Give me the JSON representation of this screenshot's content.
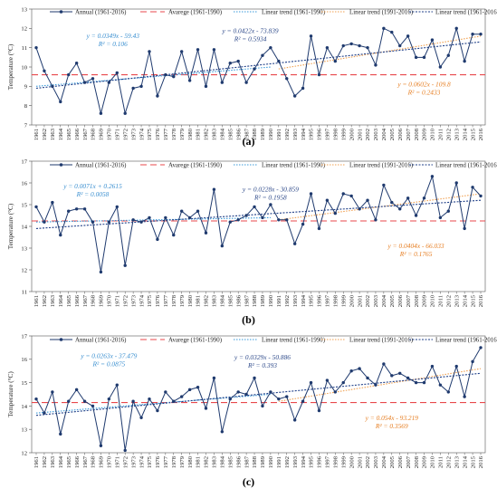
{
  "legend": {
    "annual": "Annual (1961-2016)",
    "average": "Avarege (1961-1990)",
    "trend1": "Linear trend (1961-1990)",
    "trend2": "Linear trend (1991-2016)",
    "trend3": "Linear trend (1961-2016)"
  },
  "colors": {
    "annual": "#1f3a6e",
    "average": "#e8494d",
    "trend1": "#3a9ad9",
    "trend2": "#f0a050",
    "trend3": "#1f3f88",
    "eq1": "#3a8fd0",
    "eq3": "#2e4a8a",
    "eq2": "#e67e22"
  },
  "chart_data": [
    {
      "type": "line",
      "caption": "(a)",
      "ylabel": "Temperature (°C)",
      "ylim": [
        7,
        13
      ],
      "yticks": [
        7,
        8,
        9,
        10,
        11,
        12,
        13
      ],
      "x": [
        1961,
        1962,
        1963,
        1964,
        1965,
        1966,
        1967,
        1968,
        1969,
        1970,
        1971,
        1972,
        1973,
        1974,
        1975,
        1976,
        1977,
        1978,
        1979,
        1980,
        1981,
        1982,
        1983,
        1984,
        1985,
        1986,
        1987,
        1988,
        1989,
        1990,
        1991,
        1992,
        1993,
        1994,
        1995,
        1996,
        1997,
        1998,
        1999,
        2000,
        2001,
        2002,
        2003,
        2004,
        2005,
        2006,
        2007,
        2008,
        2009,
        2010,
        2011,
        2012,
        2013,
        2014,
        2015,
        2016
      ],
      "series": [
        {
          "name": "Annual (1961-2016)",
          "values": [
            11.0,
            9.8,
            9.0,
            8.2,
            9.6,
            10.2,
            9.2,
            9.4,
            7.6,
            9.2,
            9.7,
            7.6,
            8.9,
            9.0,
            10.8,
            8.5,
            9.6,
            9.5,
            10.8,
            9.3,
            10.9,
            9.0,
            10.9,
            9.2,
            10.2,
            10.3,
            9.2,
            9.9,
            10.6,
            11.0,
            10.3,
            9.4,
            8.5,
            8.9,
            11.6,
            9.6,
            11.0,
            10.3,
            11.1,
            11.2,
            11.1,
            11.0,
            10.1,
            12.0,
            11.8,
            11.1,
            11.6,
            10.5,
            10.5,
            11.4,
            10.0,
            10.6,
            12.0,
            10.3,
            11.7,
            11.7
          ]
        },
        {
          "name": "Avarege (1961-1990)",
          "kind": "average",
          "value": 9.6
        },
        {
          "name": "Linear trend (1961-1990)",
          "kind": "trend",
          "x": [
            1961,
            1990
          ],
          "values": [
            9.0,
            10.0
          ]
        },
        {
          "name": "Linear trend (1991-2016)",
          "kind": "trend",
          "x": [
            1991,
            2016
          ],
          "values": [
            9.9,
            11.6
          ]
        },
        {
          "name": "Linear trend (1961-2016)",
          "kind": "trend",
          "x": [
            1961,
            2016
          ],
          "values": [
            8.9,
            11.3
          ]
        }
      ],
      "annotations": [
        {
          "eq": "y = 0.0349x - 59.43",
          "r2": "R² = 0.106",
          "color": "eq1",
          "at": [
            1970.5,
            11.5
          ]
        },
        {
          "eq": "y = 0.0422x - 73.839",
          "r2": "R² = 0.5934",
          "color": "eq3",
          "at": [
            1987.5,
            11.75
          ]
        },
        {
          "eq": "y = 0.0602x - 109.8",
          "r2": "R² = 0.2433",
          "color": "eq2",
          "at": [
            2009,
            9.0
          ]
        }
      ]
    },
    {
      "type": "line",
      "caption": "(b)",
      "ylabel": "Temperature (°C)",
      "ylim": [
        11,
        17
      ],
      "yticks": [
        11,
        12,
        13,
        14,
        15,
        16,
        17
      ],
      "x": [
        1961,
        1962,
        1963,
        1964,
        1965,
        1966,
        1967,
        1968,
        1969,
        1970,
        1971,
        1972,
        1973,
        1974,
        1975,
        1976,
        1977,
        1978,
        1979,
        1980,
        1981,
        1982,
        1983,
        1984,
        1985,
        1986,
        1987,
        1988,
        1989,
        1990,
        1991,
        1992,
        1993,
        1994,
        1995,
        1996,
        1997,
        1998,
        1999,
        2000,
        2001,
        2002,
        2003,
        2004,
        2005,
        2006,
        2007,
        2008,
        2009,
        2010,
        2011,
        2012,
        2013,
        2014,
        2015,
        2016
      ],
      "series": [
        {
          "name": "Annual (1961-2016)",
          "values": [
            14.9,
            14.2,
            15.1,
            13.6,
            14.7,
            14.8,
            14.8,
            14.2,
            11.9,
            14.2,
            14.9,
            12.2,
            14.3,
            14.2,
            14.4,
            13.4,
            14.4,
            13.6,
            14.7,
            14.4,
            14.7,
            13.7,
            15.7,
            13.1,
            14.2,
            14.3,
            14.5,
            14.9,
            14.4,
            15.0,
            14.3,
            14.3,
            13.2,
            14.1,
            15.5,
            13.9,
            15.2,
            14.6,
            15.5,
            15.4,
            14.8,
            15.2,
            14.3,
            15.9,
            15.1,
            14.8,
            15.3,
            14.5,
            15.3,
            16.3,
            14.4,
            14.7,
            16.0,
            13.9,
            15.8,
            15.4
          ]
        },
        {
          "name": "Avarege (1961-1990)",
          "kind": "average",
          "value": 14.25
        },
        {
          "name": "Linear trend (1961-1990)",
          "kind": "trend",
          "x": [
            1961,
            1990
          ],
          "values": [
            14.2,
            14.4
          ]
        },
        {
          "name": "Linear trend (1991-2016)",
          "kind": "trend",
          "x": [
            1991,
            2016
          ],
          "values": [
            14.3,
            15.5
          ]
        },
        {
          "name": "Linear trend (1961-2016)",
          "kind": "trend",
          "x": [
            1961,
            2016
          ],
          "values": [
            13.9,
            15.2
          ]
        }
      ],
      "annotations": [
        {
          "eq": "y = 0.0071x + 0.2615",
          "r2": "R² = 0.0058",
          "color": "eq1",
          "at": [
            1968,
            15.75
          ]
        },
        {
          "eq": "y = 0.0228x - 30.859",
          "r2": "R² = 0.1958",
          "color": "eq3",
          "at": [
            1990,
            15.6
          ]
        },
        {
          "eq": "y = 0.0404x - 66.033",
          "r2": "R² = 0.1765",
          "color": "eq2",
          "at": [
            2008,
            13.0
          ]
        }
      ]
    },
    {
      "type": "line",
      "caption": "(c)",
      "ylabel": "Temperature (°C)",
      "ylim": [
        12,
        17
      ],
      "yticks": [
        12,
        13,
        14,
        15,
        16,
        17
      ],
      "x": [
        1961,
        1962,
        1963,
        1964,
        1965,
        1966,
        1967,
        1968,
        1969,
        1970,
        1971,
        1972,
        1973,
        1974,
        1975,
        1976,
        1977,
        1978,
        1979,
        1980,
        1981,
        1982,
        1983,
        1984,
        1985,
        1986,
        1987,
        1988,
        1989,
        1990,
        1991,
        1992,
        1993,
        1994,
        1995,
        1996,
        1997,
        1998,
        1999,
        2000,
        2001,
        2002,
        2003,
        2004,
        2005,
        2006,
        2007,
        2008,
        2009,
        2010,
        2011,
        2012,
        2013,
        2014,
        2015,
        2016
      ],
      "series": [
        {
          "name": "Annual (1961-2016)",
          "values": [
            14.3,
            13.7,
            14.6,
            12.8,
            14.2,
            14.7,
            14.2,
            14.0,
            12.3,
            14.3,
            14.9,
            12.1,
            14.2,
            13.5,
            14.3,
            13.8,
            14.6,
            14.2,
            14.4,
            14.7,
            14.8,
            13.9,
            15.2,
            12.9,
            14.3,
            14.6,
            14.5,
            15.2,
            14.0,
            14.6,
            14.3,
            14.4,
            13.4,
            14.2,
            15.0,
            13.8,
            15.1,
            14.6,
            15.0,
            15.5,
            15.6,
            15.2,
            14.9,
            15.8,
            15.3,
            15.4,
            15.2,
            15.0,
            15.0,
            15.7,
            14.9,
            14.6,
            15.7,
            14.4,
            15.9,
            16.5
          ]
        },
        {
          "name": "Avarege (1961-1990)",
          "kind": "average",
          "value": 14.15
        },
        {
          "name": "Linear trend (1961-1990)",
          "kind": "trend",
          "x": [
            1961,
            1990
          ],
          "values": [
            13.7,
            14.5
          ]
        },
        {
          "name": "Linear trend (1991-2016)",
          "kind": "trend",
          "x": [
            1991,
            2016
          ],
          "values": [
            14.2,
            15.6
          ]
        },
        {
          "name": "Linear trend (1961-2016)",
          "kind": "trend",
          "x": [
            1961,
            2016
          ],
          "values": [
            13.6,
            15.4
          ]
        }
      ],
      "annotations": [
        {
          "eq": "y = 0.0263x - 37.479",
          "r2": "R² = 0.0875",
          "color": "eq1",
          "at": [
            1970,
            16.05
          ]
        },
        {
          "eq": "y = 0.0329x - 50.886",
          "r2": "R² = 0.393",
          "color": "eq3",
          "at": [
            1989,
            16.0
          ]
        },
        {
          "eq": "y = 0.054x - 93.219",
          "r2": "R² = 0.3569",
          "color": "eq2",
          "at": [
            2005,
            13.4
          ]
        }
      ]
    }
  ]
}
